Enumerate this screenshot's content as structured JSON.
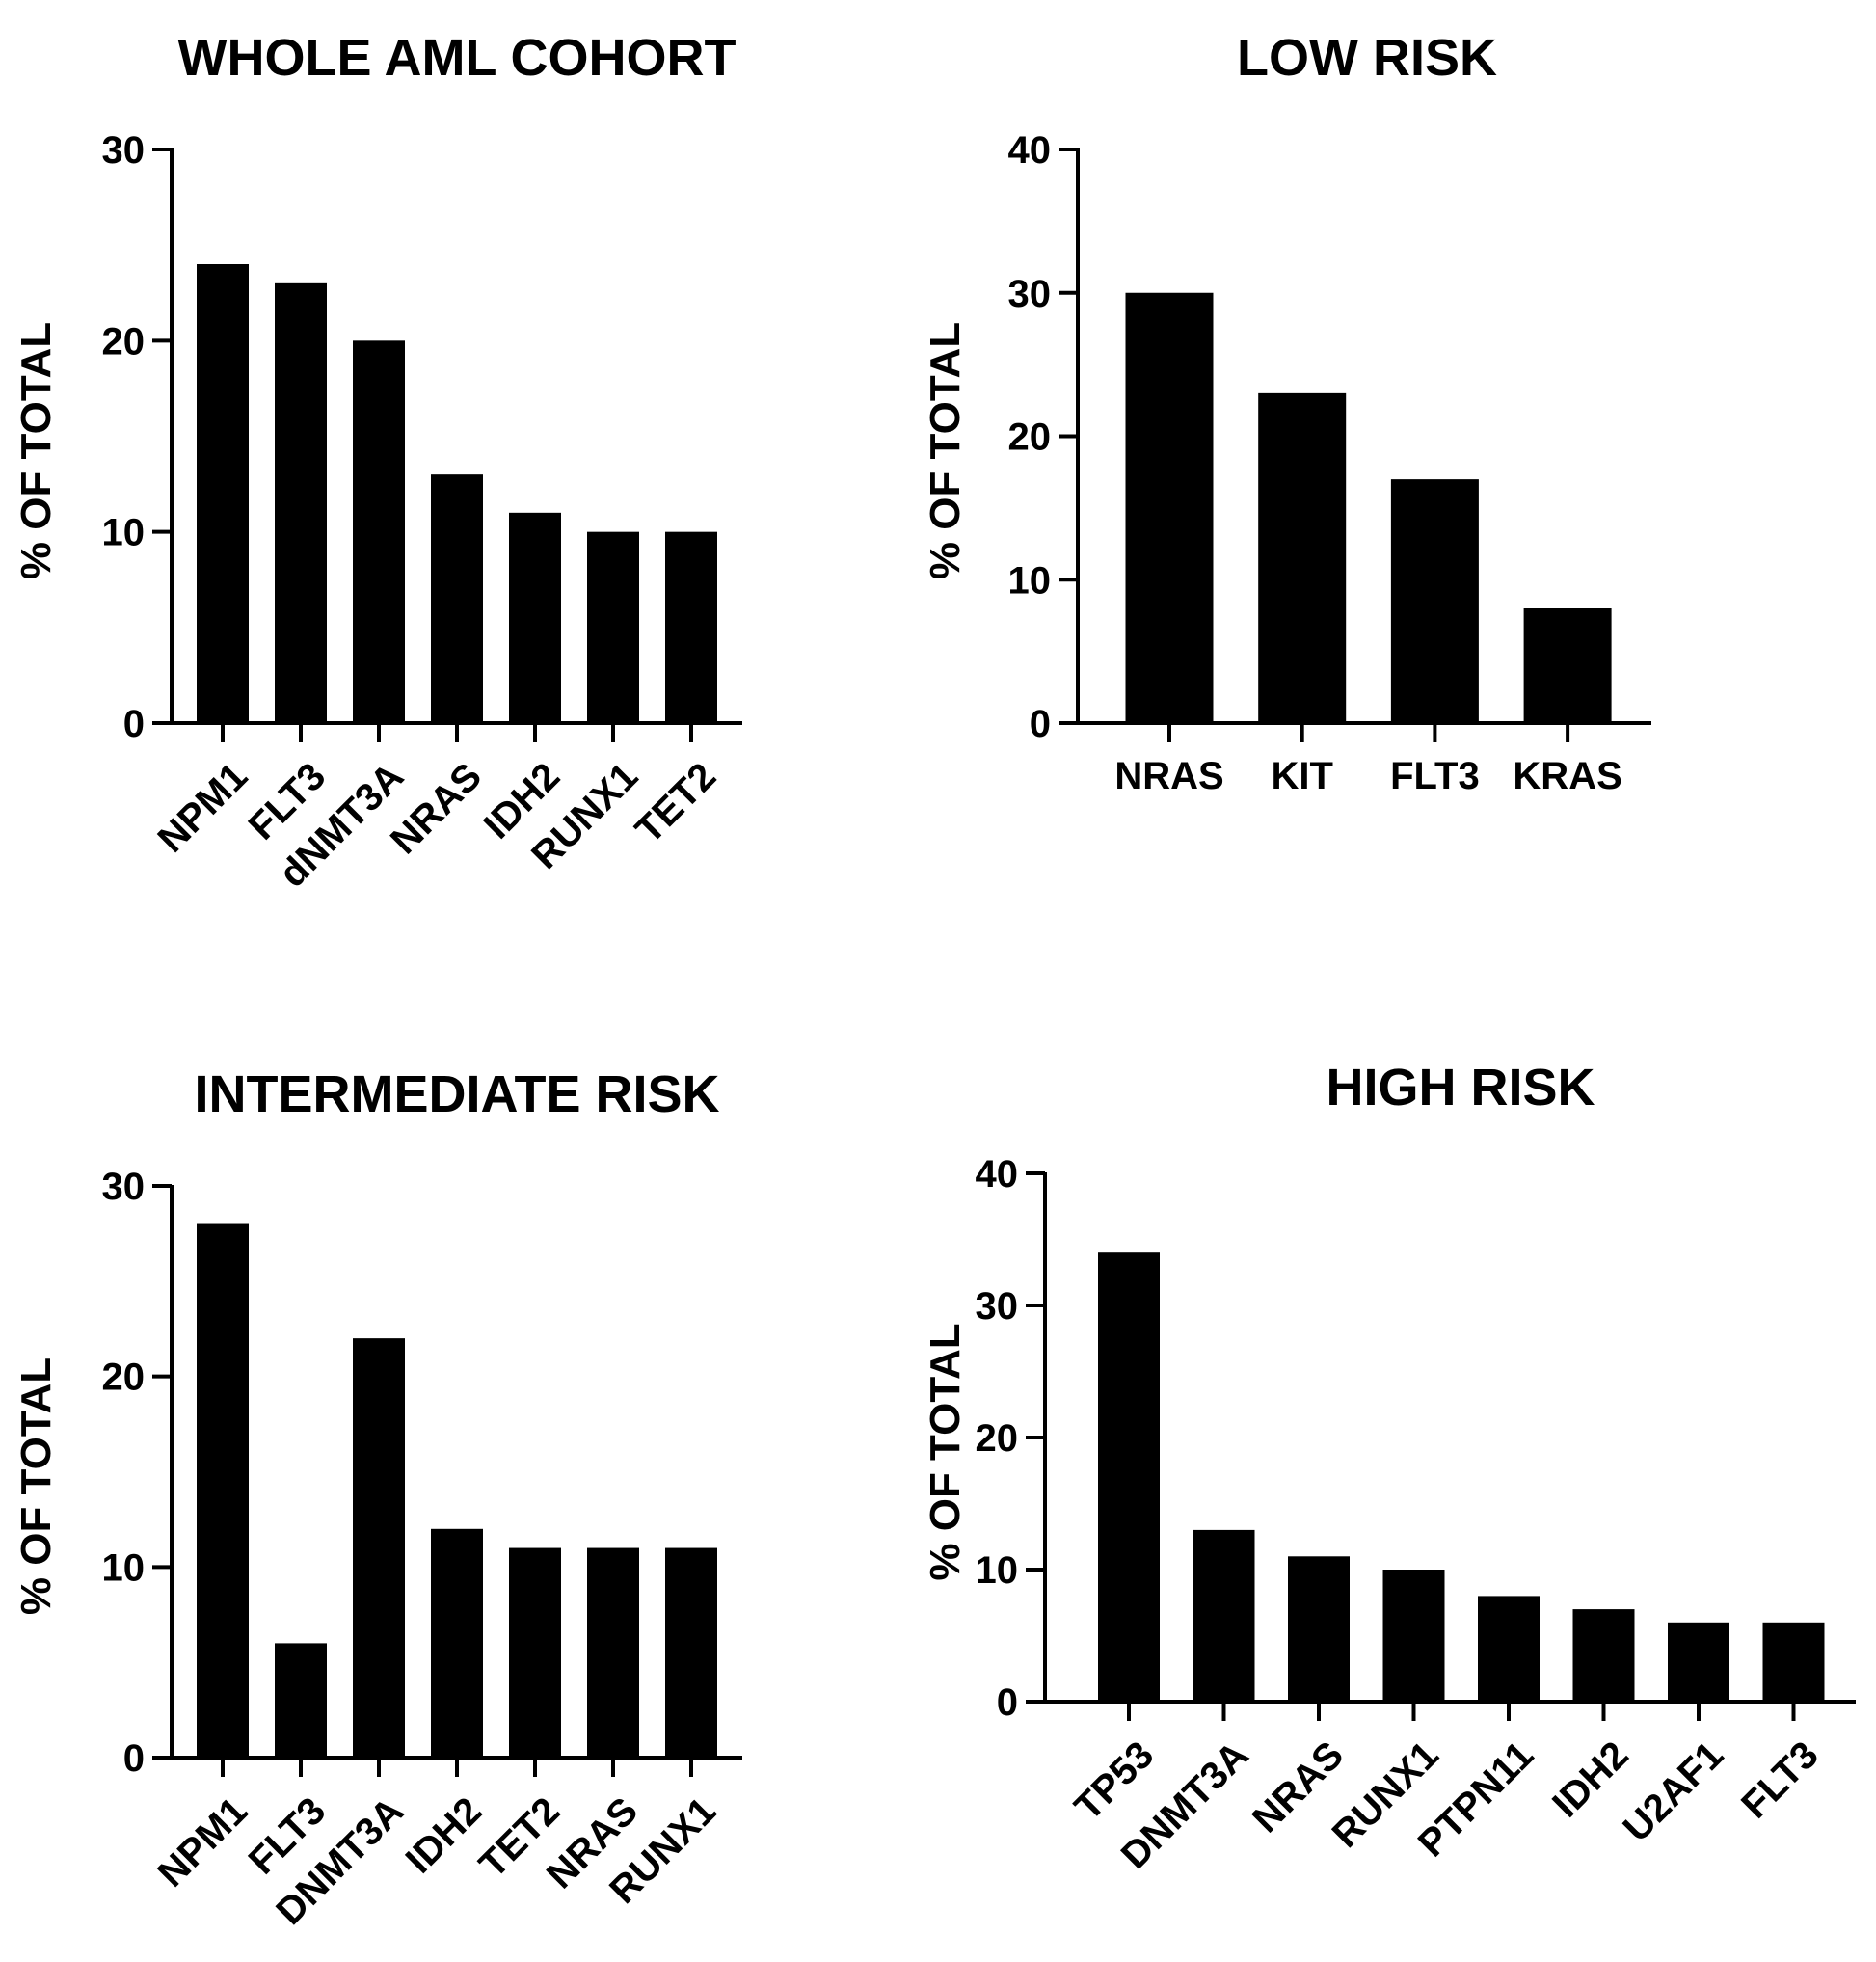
{
  "chart_data": [
    {
      "type": "bar",
      "title": "WHOLE AML COHORT",
      "ylabel": "% OF TOTAL",
      "xlabel": "",
      "ylim": [
        0,
        30
      ],
      "yticks": [
        0,
        10,
        20,
        30
      ],
      "categories": [
        "NPM1",
        "FLT3",
        "dNMT3A",
        "NRAS",
        "IDH2",
        "RUNX1",
        "TET2"
      ],
      "values": [
        24,
        23,
        20,
        13,
        11,
        10,
        10
      ],
      "rotated_labels": true,
      "color": "#000000"
    },
    {
      "type": "bar",
      "title": "LOW RISK",
      "ylabel": "% OF TOTAL",
      "xlabel": "",
      "ylim": [
        0,
        40
      ],
      "yticks": [
        0,
        10,
        20,
        30,
        40
      ],
      "categories": [
        "NRAS",
        "KIT",
        "FLT3",
        "KRAS"
      ],
      "values": [
        30,
        23,
        17,
        8
      ],
      "rotated_labels": false,
      "color": "#000000"
    },
    {
      "type": "bar",
      "title": "INTERMEDIATE RISK",
      "ylabel": "% OF TOTAL",
      "xlabel": "",
      "ylim": [
        0,
        30
      ],
      "yticks": [
        0,
        10,
        20,
        30
      ],
      "categories": [
        "NPM1",
        "FLT3",
        "DNMT3A",
        "IDH2",
        "TET2",
        "NRAS",
        "RUNX1"
      ],
      "values": [
        28,
        6,
        22,
        12,
        11,
        11,
        11
      ],
      "rotated_labels": true,
      "color": "#000000"
    },
    {
      "type": "bar",
      "title": "HIGH RISK",
      "ylabel": "% OF TOTAL",
      "xlabel": "",
      "ylim": [
        0,
        40
      ],
      "yticks": [
        0,
        10,
        20,
        30,
        40
      ],
      "categories": [
        "TP53",
        "DNMT3A",
        "NRAS",
        "RUNX1",
        "PTPN11",
        "IDH2",
        "U2AF1",
        "FLT3"
      ],
      "values": [
        34,
        13,
        11,
        10,
        8,
        7,
        6,
        6
      ],
      "rotated_labels": true,
      "color": "#000000"
    }
  ]
}
